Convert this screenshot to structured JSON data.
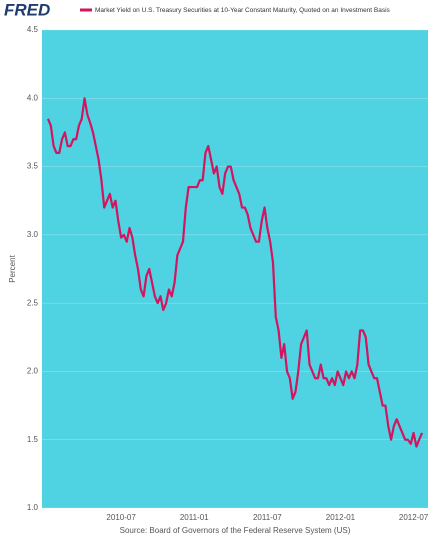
{
  "chart_data": {
    "type": "line",
    "logo": "FRED",
    "y_label": "Percent",
    "source": "Source: Board of Governors of the Federal Reserve System (US)",
    "background": "#4fd3e2",
    "grid": true,
    "categories": [
      null,
      null,
      null,
      null,
      null,
      null,
      null,
      null,
      null,
      null,
      null,
      null,
      null,
      null,
      null,
      null,
      null,
      null,
      null,
      null,
      null,
      null,
      null,
      null,
      null,
      null,
      "2010-07",
      null,
      null,
      null,
      null,
      null,
      null,
      null,
      null,
      null,
      null,
      null,
      null,
      null,
      null,
      null,
      null,
      null,
      null,
      null,
      null,
      null,
      null,
      null,
      null,
      null,
      "2011-01",
      null,
      null,
      null,
      null,
      null,
      null,
      null,
      null,
      null,
      null,
      null,
      null,
      null,
      null,
      null,
      null,
      null,
      null,
      null,
      null,
      null,
      null,
      null,
      null,
      null,
      "2011-07",
      null,
      null,
      null,
      null,
      null,
      null,
      null,
      null,
      null,
      null,
      null,
      null,
      null,
      null,
      null,
      null,
      null,
      null,
      null,
      null,
      null,
      null,
      null,
      null,
      null,
      "2012-01",
      null,
      null,
      null,
      null,
      null,
      null,
      null,
      null,
      null,
      null,
      null,
      null,
      null,
      null,
      null,
      null,
      null,
      null,
      null,
      null,
      null,
      null,
      null,
      null,
      null,
      "2012-07",
      null,
      null,
      null
    ],
    "series": [
      {
        "name": "Market Yield on U.S. Treasury Securities at 10-Year Constant Maturity, Quoted on an Investment Basis",
        "color": "#d3145f",
        "values": [
          3.85,
          3.8,
          3.65,
          3.6,
          3.6,
          3.7,
          3.75,
          3.65,
          3.65,
          3.7,
          3.7,
          3.8,
          3.85,
          4.0,
          3.88,
          3.82,
          3.75,
          3.65,
          3.55,
          3.4,
          3.2,
          3.25,
          3.3,
          3.2,
          3.25,
          3.1,
          2.98,
          3.0,
          2.95,
          3.05,
          2.98,
          2.85,
          2.75,
          2.6,
          2.55,
          2.7,
          2.75,
          2.65,
          2.55,
          2.5,
          2.55,
          2.45,
          2.5,
          2.6,
          2.55,
          2.65,
          2.85,
          2.9,
          2.95,
          3.2,
          3.35,
          3.35,
          3.35,
          3.35,
          3.4,
          3.4,
          3.6,
          3.65,
          3.55,
          3.45,
          3.5,
          3.35,
          3.3,
          3.45,
          3.5,
          3.5,
          3.4,
          3.35,
          3.3,
          3.2,
          3.2,
          3.15,
          3.05,
          3.0,
          2.95,
          2.95,
          3.1,
          3.2,
          3.05,
          2.95,
          2.8,
          2.4,
          2.3,
          2.1,
          2.2,
          2.0,
          1.95,
          1.8,
          1.85,
          2.0,
          2.2,
          2.25,
          2.3,
          2.05,
          2.0,
          1.95,
          1.95,
          2.05,
          1.95,
          1.95,
          1.9,
          1.95,
          1.9,
          2.0,
          1.95,
          1.9,
          2.0,
          1.95,
          2.0,
          1.95,
          2.05,
          2.3,
          2.3,
          2.25,
          2.05,
          2.0,
          1.95,
          1.95,
          1.85,
          1.75,
          1.75,
          1.6,
          1.5,
          1.6,
          1.65,
          1.6,
          1.55,
          1.5,
          1.5,
          1.47,
          1.55,
          1.45,
          1.5,
          1.55
        ]
      }
    ],
    "ylim": [
      1,
      4.5
    ],
    "yticks": [
      {
        "value": 1,
        "label": "1.0"
      },
      1.5,
      {
        "value": 2,
        "label": "2.0"
      },
      2.5,
      {
        "value": 3,
        "label": "3.0"
      },
      3.5,
      {
        "value": 4,
        "label": "4.0"
      },
      4.5
    ]
  }
}
